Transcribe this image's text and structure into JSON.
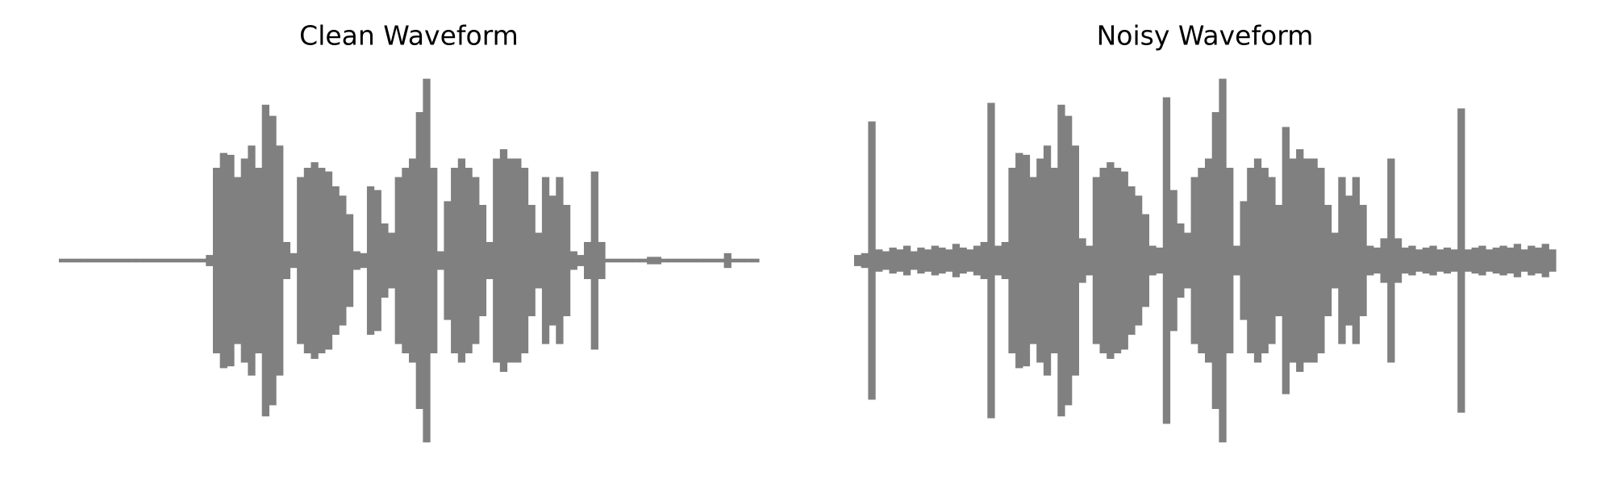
{
  "chart_data": [
    {
      "type": "waveform",
      "title": "Clean Waveform",
      "color": "#808080",
      "ylim": [
        -1,
        1
      ],
      "values": [
        0.01,
        0.01,
        0.01,
        0.01,
        0.01,
        0.01,
        0.01,
        0.01,
        0.01,
        0.01,
        0.01,
        0.01,
        0.01,
        0.01,
        0.01,
        0.01,
        0.01,
        0.01,
        0.01,
        0.01,
        0.01,
        0.03,
        0.5,
        0.58,
        0.57,
        0.45,
        0.55,
        0.62,
        0.5,
        0.84,
        0.78,
        0.62,
        0.1,
        0.04,
        0.45,
        0.5,
        0.53,
        0.5,
        0.48,
        0.4,
        0.35,
        0.25,
        0.05,
        0.04,
        0.4,
        0.38,
        0.2,
        0.15,
        0.45,
        0.5,
        0.55,
        0.8,
        0.98,
        0.5,
        0.05,
        0.32,
        0.5,
        0.55,
        0.5,
        0.45,
        0.3,
        0.1,
        0.55,
        0.6,
        0.55,
        0.55,
        0.5,
        0.3,
        0.15,
        0.45,
        0.35,
        0.45,
        0.3,
        0.05,
        0.03,
        0.1,
        0.48,
        0.1,
        0.01,
        0.01,
        0.01,
        0.01,
        0.01,
        0.01,
        0.02,
        0.02,
        0.01,
        0.01,
        0.01,
        0.01,
        0.01,
        0.01,
        0.01,
        0.01,
        0.01,
        0.04,
        0.01,
        0.01,
        0.01,
        0.01
      ]
    },
    {
      "type": "waveform",
      "title": "Noisy Waveform",
      "color": "#808080",
      "ylim": [
        -1,
        1
      ],
      "values": [
        0.03,
        0.04,
        0.75,
        0.06,
        0.05,
        0.07,
        0.06,
        0.08,
        0.05,
        0.07,
        0.06,
        0.08,
        0.07,
        0.06,
        0.09,
        0.07,
        0.06,
        0.08,
        0.1,
        0.85,
        0.08,
        0.1,
        0.5,
        0.58,
        0.57,
        0.45,
        0.55,
        0.62,
        0.5,
        0.84,
        0.78,
        0.62,
        0.12,
        0.08,
        0.45,
        0.5,
        0.53,
        0.5,
        0.48,
        0.4,
        0.35,
        0.25,
        0.08,
        0.07,
        0.88,
        0.38,
        0.2,
        0.15,
        0.45,
        0.5,
        0.55,
        0.8,
        0.98,
        0.5,
        0.08,
        0.32,
        0.5,
        0.55,
        0.5,
        0.45,
        0.3,
        0.72,
        0.55,
        0.6,
        0.55,
        0.55,
        0.5,
        0.3,
        0.15,
        0.45,
        0.35,
        0.45,
        0.3,
        0.08,
        0.07,
        0.12,
        0.55,
        0.12,
        0.07,
        0.08,
        0.06,
        0.07,
        0.08,
        0.06,
        0.07,
        0.06,
        0.82,
        0.06,
        0.07,
        0.08,
        0.06,
        0.07,
        0.08,
        0.07,
        0.09,
        0.06,
        0.08,
        0.07,
        0.09,
        0.06
      ]
    }
  ]
}
